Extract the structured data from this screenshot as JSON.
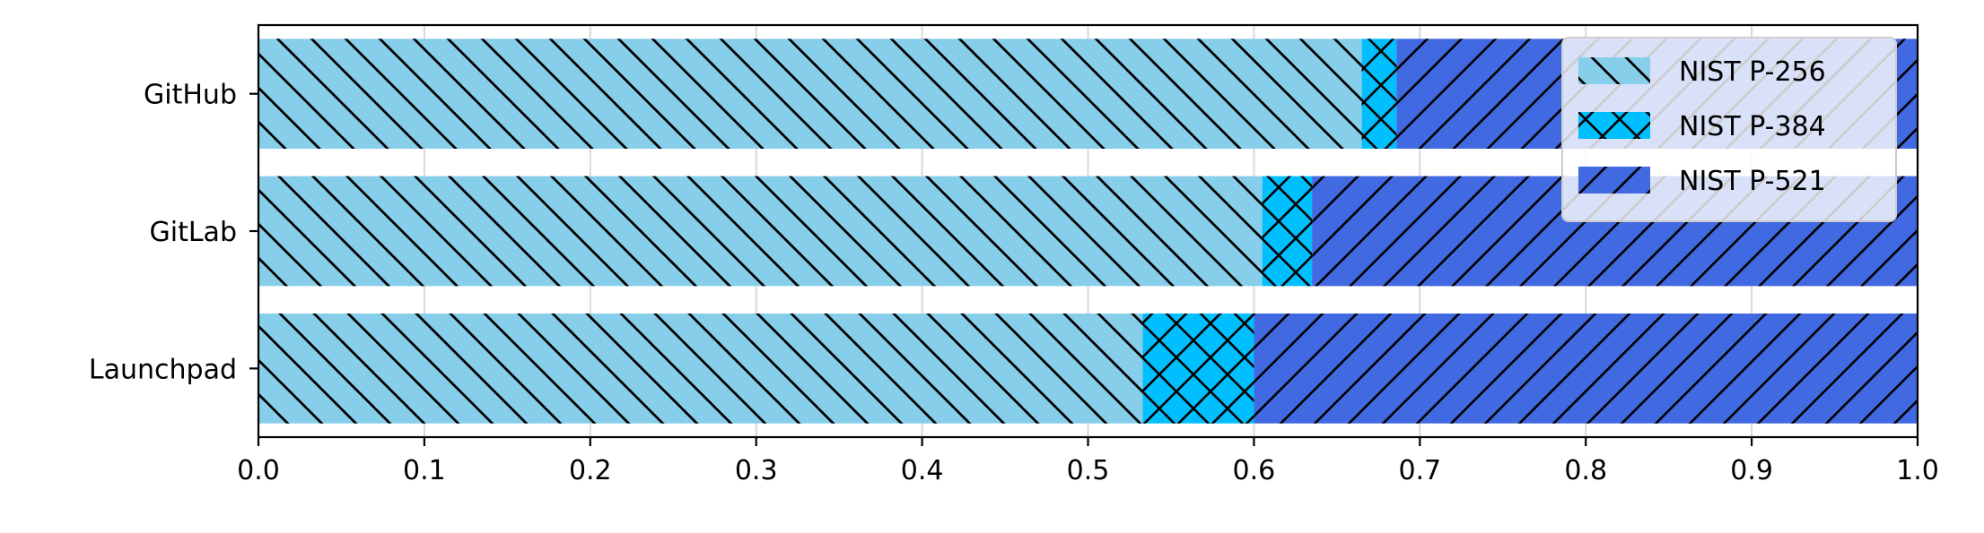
{
  "chart_data": {
    "type": "bar",
    "orientation": "horizontal",
    "stacked": true,
    "categories": [
      "GitHub",
      "GitLab",
      "Launchpad"
    ],
    "series": [
      {
        "name": "NIST P-256",
        "values": [
          0.665,
          0.605,
          0.533
        ],
        "color": "#87CEEB",
        "hatch": "backslash"
      },
      {
        "name": "NIST P-384",
        "values": [
          0.021,
          0.03,
          0.067
        ],
        "color": "#00BFFF",
        "hatch": "cross"
      },
      {
        "name": "NIST P-521",
        "values": [
          0.314,
          0.365,
          0.4
        ],
        "color": "#4169E1",
        "hatch": "slash"
      }
    ],
    "xlim": [
      0,
      1.0
    ],
    "xticks": [
      "0.0",
      "0.1",
      "0.2",
      "0.3",
      "0.4",
      "0.5",
      "0.6",
      "0.7",
      "0.8",
      "0.9",
      "1.0"
    ],
    "xlabel": "",
    "ylabel": "",
    "title": "",
    "grid": "vertical",
    "legend_position": "top-right"
  }
}
